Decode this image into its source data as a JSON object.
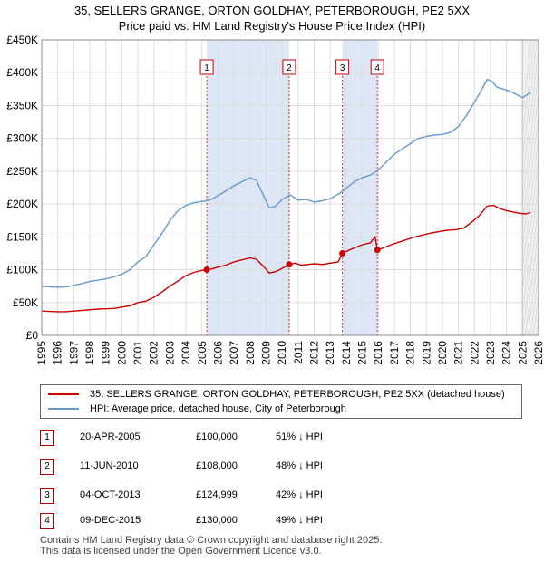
{
  "title_line1": "35, SELLERS GRANGE, ORTON GOLDHAY, PETERBOROUGH, PE2 5XX",
  "title_line2": "Price paid vs. HM Land Registry's House Price Index (HPI)",
  "colors": {
    "property": "#cc0000",
    "hpi": "#6699cc",
    "shade": "#dde6f5",
    "marker": "#cc0000"
  },
  "chart_data": {
    "type": "line",
    "x_range": [
      1995,
      2026
    ],
    "y_range": [
      0,
      450000
    ],
    "y_ticks": [
      {
        "value": 0,
        "label": "£0"
      },
      {
        "value": 50000,
        "label": "£50K"
      },
      {
        "value": 100000,
        "label": "£100K"
      },
      {
        "value": 150000,
        "label": "£150K"
      },
      {
        "value": 200000,
        "label": "£200K"
      },
      {
        "value": 250000,
        "label": "£250K"
      },
      {
        "value": 300000,
        "label": "£300K"
      },
      {
        "value": 350000,
        "label": "£350K"
      },
      {
        "value": 400000,
        "label": "£400K"
      },
      {
        "value": 450000,
        "label": "£450K"
      }
    ],
    "x_ticks": [
      "1995",
      "1996",
      "1997",
      "1998",
      "1999",
      "2000",
      "2001",
      "2002",
      "2003",
      "2004",
      "2005",
      "2006",
      "2007",
      "2008",
      "2009",
      "2010",
      "2011",
      "2012",
      "2013",
      "2014",
      "2015",
      "2016",
      "2017",
      "2018",
      "2019",
      "2020",
      "2021",
      "2022",
      "2023",
      "2024",
      "2025",
      "2026"
    ],
    "future_from": 2025.0,
    "series": [
      {
        "name": "35, SELLERS GRANGE, ORTON GOLDHAY, PETERBOROUGH, PE2 5XX (detached house)",
        "color_key": "property",
        "x": [
          1995.0,
          1995.5,
          1996.0,
          1996.5,
          1997.0,
          1997.5,
          1998.0,
          1998.5,
          1999.0,
          1999.5,
          2000.0,
          2000.5,
          2001.0,
          2001.5,
          2002.0,
          2002.5,
          2003.0,
          2003.5,
          2004.0,
          2004.5,
          2005.0,
          2005.3,
          2005.6,
          2006.0,
          2006.5,
          2007.0,
          2007.5,
          2008.0,
          2008.4,
          2008.8,
          2009.2,
          2009.6,
          2010.0,
          2010.44,
          2010.8,
          2011.2,
          2011.6,
          2012.0,
          2012.5,
          2013.0,
          2013.5,
          2013.76,
          2014.2,
          2014.6,
          2015.0,
          2015.5,
          2015.8,
          2015.94,
          2016.3,
          2016.8,
          2017.3,
          2017.8,
          2018.3,
          2018.8,
          2019.3,
          2019.8,
          2020.3,
          2020.8,
          2021.3,
          2021.8,
          2022.2,
          2022.5,
          2022.8,
          2023.2,
          2023.6,
          2024.0,
          2024.4,
          2024.8,
          2025.2,
          2025.5
        ],
        "y": [
          37000,
          36500,
          36000,
          36000,
          37000,
          38000,
          39000,
          40000,
          40500,
          41000,
          43000,
          45000,
          50000,
          52000,
          58000,
          66000,
          75000,
          83000,
          91000,
          96000,
          99000,
          100000,
          101000,
          104000,
          107000,
          112000,
          115000,
          118000,
          116000,
          106000,
          95000,
          97000,
          102000,
          108000,
          110000,
          107000,
          108000,
          109000,
          108000,
          110000,
          112000,
          124999,
          130000,
          134000,
          138000,
          141000,
          150000,
          130000,
          133000,
          138000,
          142000,
          146000,
          150000,
          153000,
          156000,
          158000,
          160000,
          161000,
          163000,
          172000,
          180000,
          188000,
          197000,
          198000,
          193000,
          190000,
          188000,
          186000,
          185000,
          187000
        ]
      },
      {
        "name": "HPI: Average price, detached house, City of Peterborough",
        "color_key": "hpi",
        "x": [
          1995.0,
          1995.5,
          1996.0,
          1996.5,
          1997.0,
          1997.5,
          1998.0,
          1998.5,
          1999.0,
          1999.5,
          2000.0,
          2000.5,
          2001.0,
          2001.5,
          2002.0,
          2002.5,
          2003.0,
          2003.5,
          2004.0,
          2004.5,
          2005.0,
          2005.3,
          2005.6,
          2006.0,
          2006.5,
          2007.0,
          2007.5,
          2008.0,
          2008.4,
          2008.8,
          2009.2,
          2009.6,
          2010.0,
          2010.5,
          2011.0,
          2011.5,
          2012.0,
          2012.5,
          2013.0,
          2013.5,
          2014.0,
          2014.5,
          2015.0,
          2015.5,
          2016.0,
          2016.5,
          2017.0,
          2017.5,
          2018.0,
          2018.5,
          2019.0,
          2019.5,
          2020.0,
          2020.5,
          2021.0,
          2021.5,
          2022.0,
          2022.4,
          2022.8,
          2023.1,
          2023.4,
          2023.8,
          2024.2,
          2024.6,
          2025.0,
          2025.5
        ],
        "y": [
          75000,
          74000,
          73000,
          74000,
          76000,
          79000,
          82000,
          84000,
          86000,
          89000,
          93000,
          100000,
          112000,
          120000,
          138000,
          155000,
          175000,
          190000,
          198000,
          202000,
          204000,
          205000,
          207000,
          213000,
          220000,
          228000,
          234000,
          240000,
          236000,
          215000,
          194000,
          197000,
          207000,
          214000,
          206000,
          207000,
          203000,
          205000,
          208000,
          215000,
          224000,
          234000,
          240000,
          244000,
          252000,
          264000,
          276000,
          284000,
          292000,
          300000,
          303000,
          305000,
          306000,
          309000,
          318000,
          335000,
          355000,
          372000,
          390000,
          387000,
          378000,
          375000,
          372000,
          367000,
          362000,
          370000
        ]
      }
    ],
    "sales": [
      {
        "n": "1",
        "x": 2005.3,
        "y": 100000
      },
      {
        "n": "2",
        "x": 2010.44,
        "y": 108000
      },
      {
        "n": "3",
        "x": 2013.76,
        "y": 124999
      },
      {
        "n": "4",
        "x": 2015.94,
        "y": 130000
      }
    ],
    "shaded_spans": [
      [
        2005.3,
        2010.44
      ],
      [
        2013.76,
        2015.94
      ]
    ]
  },
  "legend": {
    "property": "35, SELLERS GRANGE, ORTON GOLDHAY, PETERBOROUGH, PE2 5XX (detached house)",
    "hpi": "HPI: Average price, detached house, City of Peterborough"
  },
  "sales_table": [
    {
      "n": "1",
      "date": "20-APR-2005",
      "price": "£100,000",
      "pct": "51% ↓ HPI"
    },
    {
      "n": "2",
      "date": "11-JUN-2010",
      "price": "£108,000",
      "pct": "48% ↓ HPI"
    },
    {
      "n": "3",
      "date": "04-OCT-2013",
      "price": "£124,999",
      "pct": "42% ↓ HPI"
    },
    {
      "n": "4",
      "date": "09-DEC-2015",
      "price": "£130,000",
      "pct": "49% ↓ HPI"
    }
  ],
  "footer_line1": "Contains HM Land Registry data © Crown copyright and database right 2025.",
  "footer_line2": "This data is licensed under the Open Government Licence v3.0."
}
